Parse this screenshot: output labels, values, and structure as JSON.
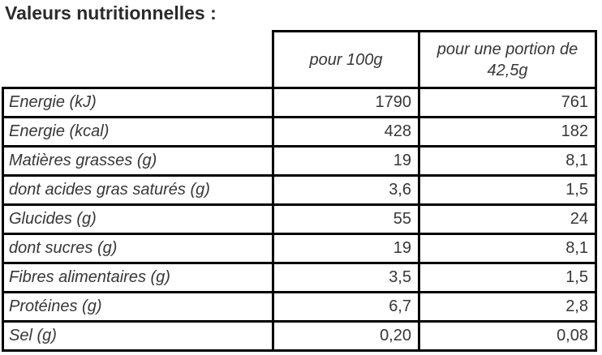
{
  "title": "Valeurs nutritionnelles :",
  "table": {
    "headers": {
      "per_100g": "pour 100g",
      "per_portion": "pour une portion de 42,5g"
    },
    "rows": [
      {
        "label": "Energie (kJ)",
        "per100g": "1790",
        "portion": "761"
      },
      {
        "label": "Energie (kcal)",
        "per100g": "428",
        "portion": "182"
      },
      {
        "label": "Matières grasses (g)",
        "per100g": "19",
        "portion": "8,1"
      },
      {
        "label": "dont acides gras saturés (g)",
        "per100g": "3,6",
        "portion": "1,5"
      },
      {
        "label": "Glucides (g)",
        "per100g": "55",
        "portion": "24"
      },
      {
        "label": "dont sucres (g)",
        "per100g": "19",
        "portion": "8,1"
      },
      {
        "label": "Fibres alimentaires (g)",
        "per100g": "3,5",
        "portion": "1,5"
      },
      {
        "label": "Protéines (g)",
        "per100g": "6,7",
        "portion": "2,8"
      },
      {
        "label": "Sel (g)",
        "per100g": "0,20",
        "portion": "0,08"
      }
    ]
  },
  "colors": {
    "title_text": "#2b2b2b",
    "table_text": "#373737",
    "border": "#000000",
    "background": "#ffffff"
  }
}
